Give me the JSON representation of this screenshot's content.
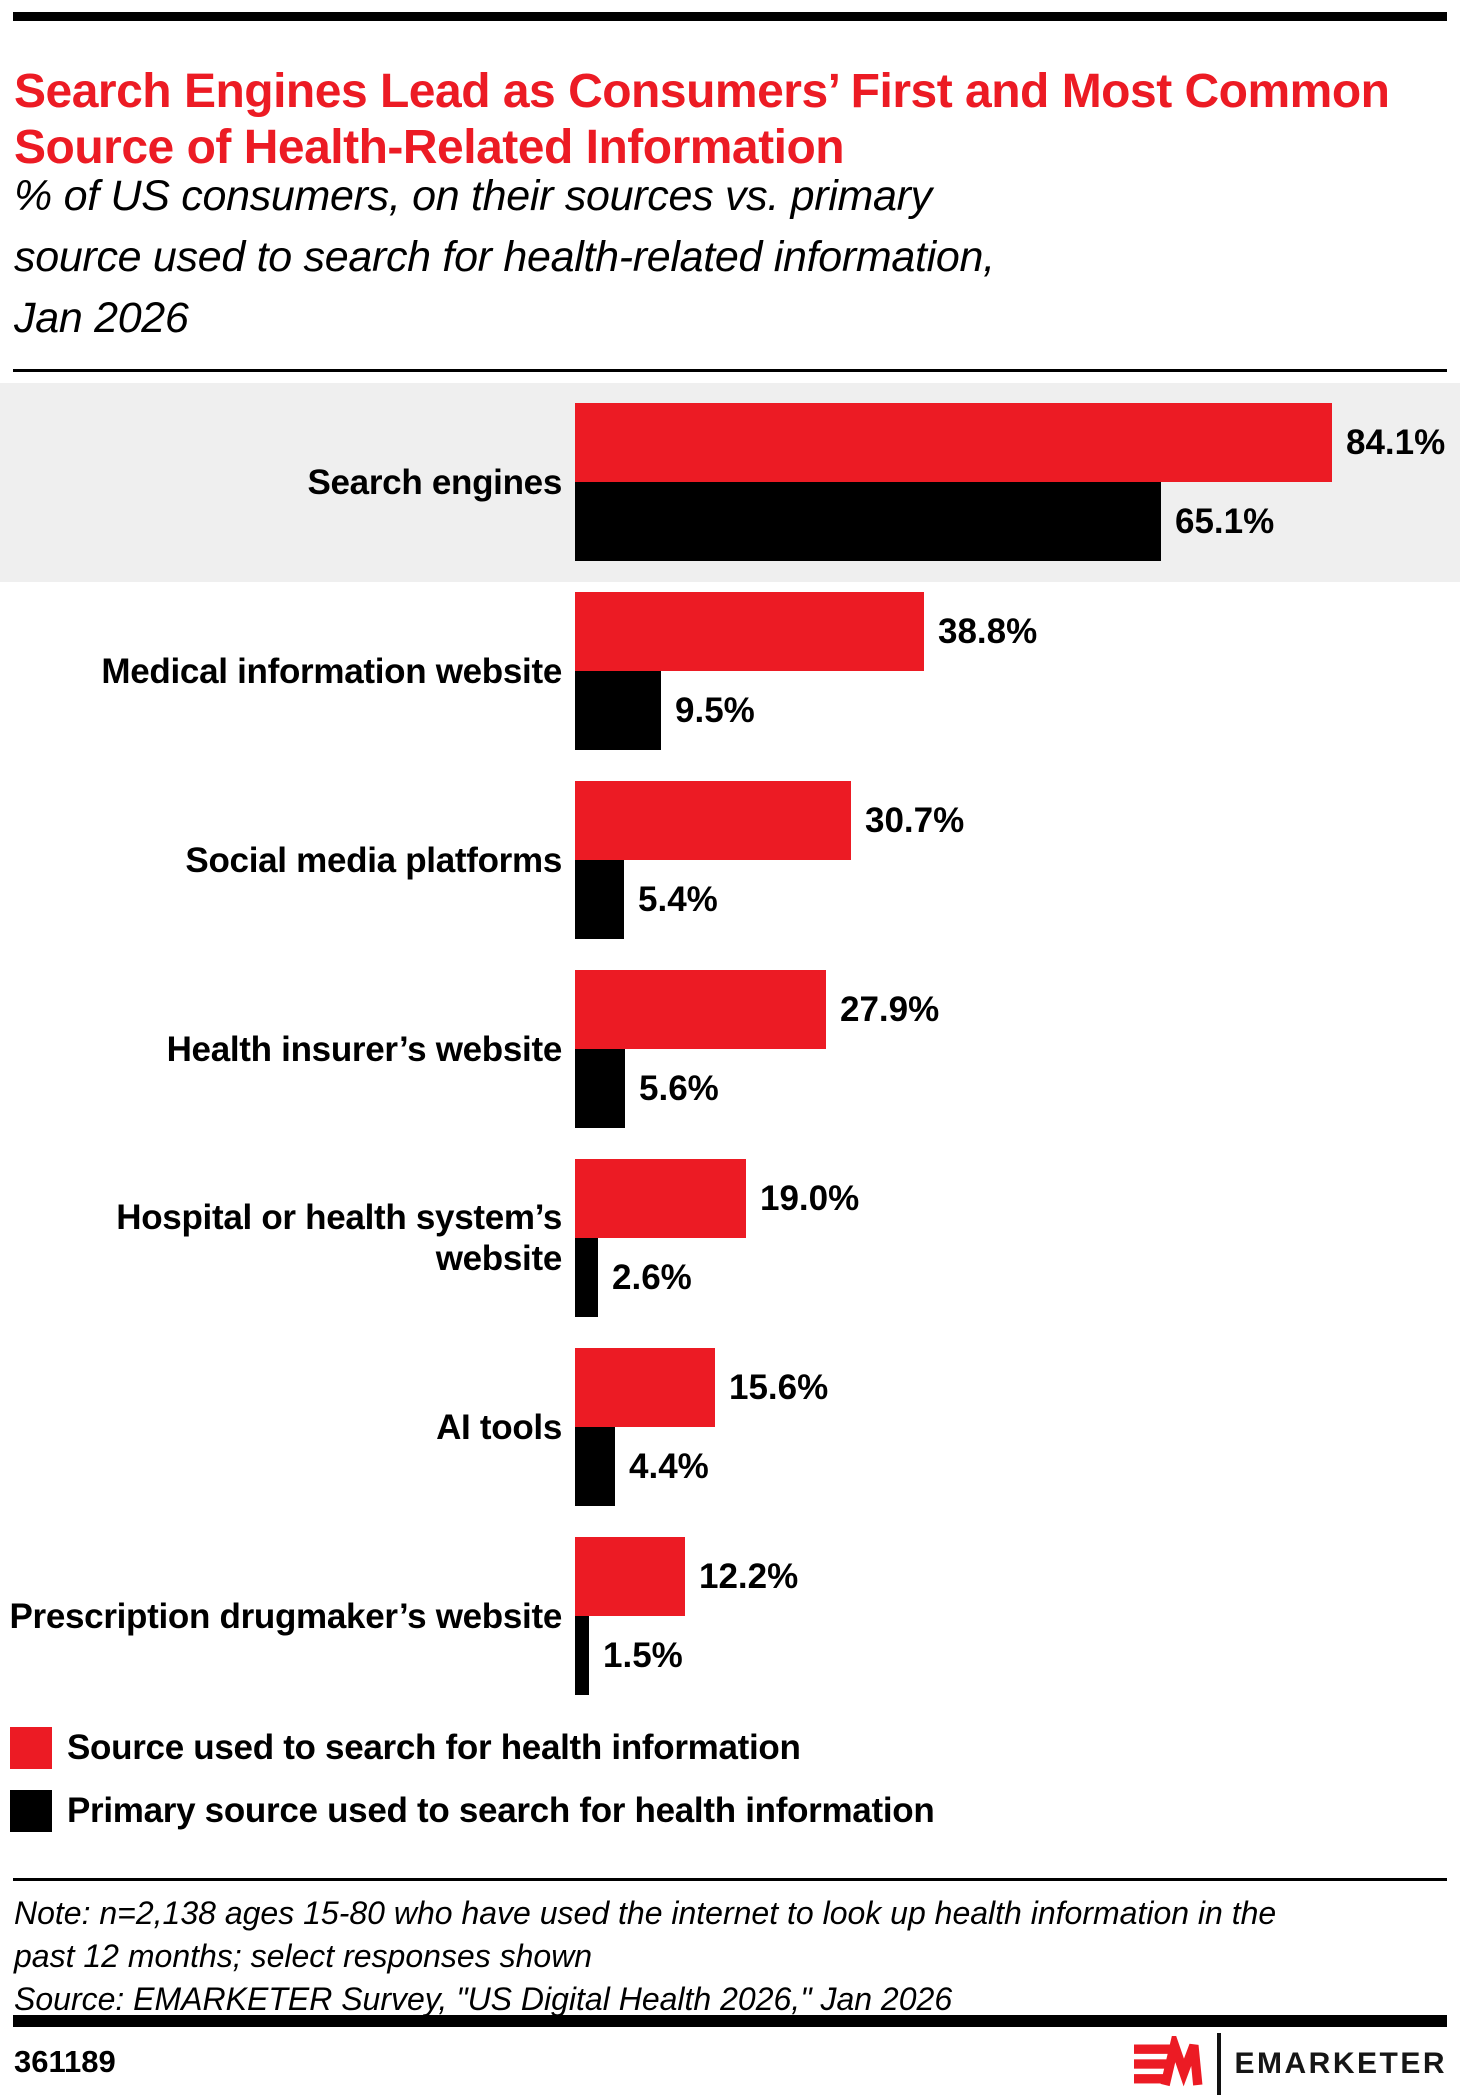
{
  "header": {
    "title": "Search Engines Lead as Consumers’ First and Most Common Source of Health-Related Information",
    "subtitle_lines": [
      "% of US consumers, on their sources vs. primary",
      "source used to search for health-related information,",
      "Jan 2026"
    ]
  },
  "chart_data": {
    "type": "bar",
    "orientation": "horizontal",
    "unit": "%",
    "categories": [
      "Search engines",
      "Medical information website",
      "Social media platforms",
      "Health insurer’s website",
      "Hospital or health system’s website",
      "AI tools",
      "Prescription drugmaker’s website"
    ],
    "series": [
      {
        "name": "Source used to search for health information",
        "color": "#EC1B24",
        "values": [
          84.1,
          38.8,
          30.7,
          27.9,
          19.0,
          15.6,
          12.2
        ]
      },
      {
        "name": "Primary source used to search for health information",
        "color": "#000000",
        "values": [
          65.1,
          9.5,
          5.4,
          5.6,
          2.6,
          4.4,
          1.5
        ]
      }
    ],
    "xlim": [
      0,
      100
    ],
    "value_labels": true,
    "highlight_first_row": true,
    "legend_position": "bottom-left"
  },
  "note_lines": [
    "Note: n=2,138 ages 15-80 who have used the internet to look up health information in the",
    "past 12 months; select responses shown"
  ],
  "source_line": "Source: EMARKETER Survey, \"US Digital Health 2026,\" Jan 2026",
  "footer": {
    "chart_id": "361189",
    "brand": "EMARKETER"
  },
  "colors": {
    "accent_red": "#EC1B24",
    "highlight_band": "#EFEFEF",
    "text": "#000000"
  }
}
